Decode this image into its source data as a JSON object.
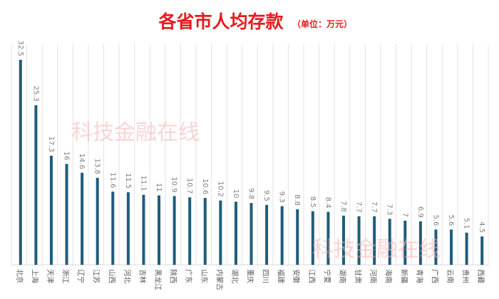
{
  "chart_data": {
    "type": "bar",
    "title": "各省市人均存款",
    "unit_note": "（单位：万元）",
    "categories": [
      "北京",
      "上海",
      "天津",
      "浙江",
      "辽宁",
      "江苏",
      "山西",
      "河北",
      "吉林",
      "黑龙江",
      "陕西",
      "广东",
      "山东",
      "内蒙古",
      "湖北",
      "重庆",
      "四川",
      "福建",
      "安徽",
      "江西",
      "宁夏",
      "湖南",
      "甘肃",
      "河南",
      "海南",
      "新疆",
      "青海",
      "广西",
      "云南",
      "贵州",
      "西藏"
    ],
    "values": [
      32.5,
      25.3,
      17.3,
      16,
      14.6,
      13.8,
      11.6,
      11.5,
      11.1,
      11,
      10.9,
      10.7,
      10.6,
      10.2,
      10,
      9.8,
      9.5,
      9.3,
      8.8,
      8.5,
      8.4,
      7.8,
      7.7,
      7.7,
      7.3,
      7,
      6.9,
      5.6,
      5.6,
      5.1,
      4.5
    ],
    "value_labels": [
      "32.5",
      "25.3",
      "17.3",
      "16",
      "14.6",
      "13.8",
      "11.6",
      "11.5",
      "11.1",
      "11",
      "10.9",
      "10.7",
      "10.6",
      "10.2",
      "10",
      "9.8",
      "9.5",
      "9.3",
      "8.8",
      "8.5",
      "8.4",
      "7.8",
      "7.7",
      "7.7",
      "7.3",
      "7",
      "6.9",
      "5.6",
      "5.6",
      "5.1",
      "4.5"
    ],
    "ylim": [
      0,
      35
    ],
    "grid": "vertical",
    "bar_color": "#1f5c7c",
    "title_color": "#e8191e"
  },
  "watermark": {
    "text": "科技金融在线",
    "color": "#f3b3b3"
  }
}
